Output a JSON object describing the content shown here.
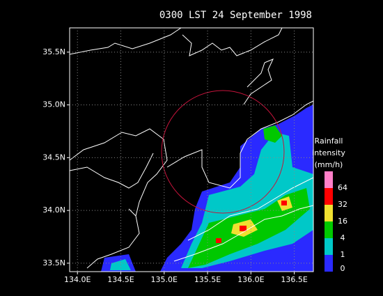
{
  "title": "0300 LST 24 September 1998",
  "map": {
    "xlim": [
      133.91,
      136.72
    ],
    "ylim": [
      33.42,
      35.73
    ],
    "xticks": [
      {
        "value": 134.0,
        "label": "134.0E"
      },
      {
        "value": 134.5,
        "label": "134.5E"
      },
      {
        "value": 135.0,
        "label": "135.0E"
      },
      {
        "value": 135.5,
        "label": "135.5E"
      },
      {
        "value": 136.0,
        "label": "136.0E"
      },
      {
        "value": 136.5,
        "label": "136.5E"
      }
    ],
    "yticks": [
      {
        "value": 33.5,
        "label": "33.5N"
      },
      {
        "value": 34.0,
        "label": "34.0N"
      },
      {
        "value": 34.5,
        "label": "34.5N"
      },
      {
        "value": 35.0,
        "label": "35.0N"
      },
      {
        "value": 35.5,
        "label": "35.5N"
      }
    ],
    "grid": true
  },
  "legend": {
    "title": [
      "Rainfall",
      "intensity",
      "(mm/h)"
    ],
    "levels": [
      0,
      1,
      4,
      16,
      32,
      64
    ],
    "colors": [
      "#2a2aff",
      "#00c8c8",
      "#00c800",
      "#f0e030",
      "#ff0000",
      "#ff7fc8"
    ]
  }
}
